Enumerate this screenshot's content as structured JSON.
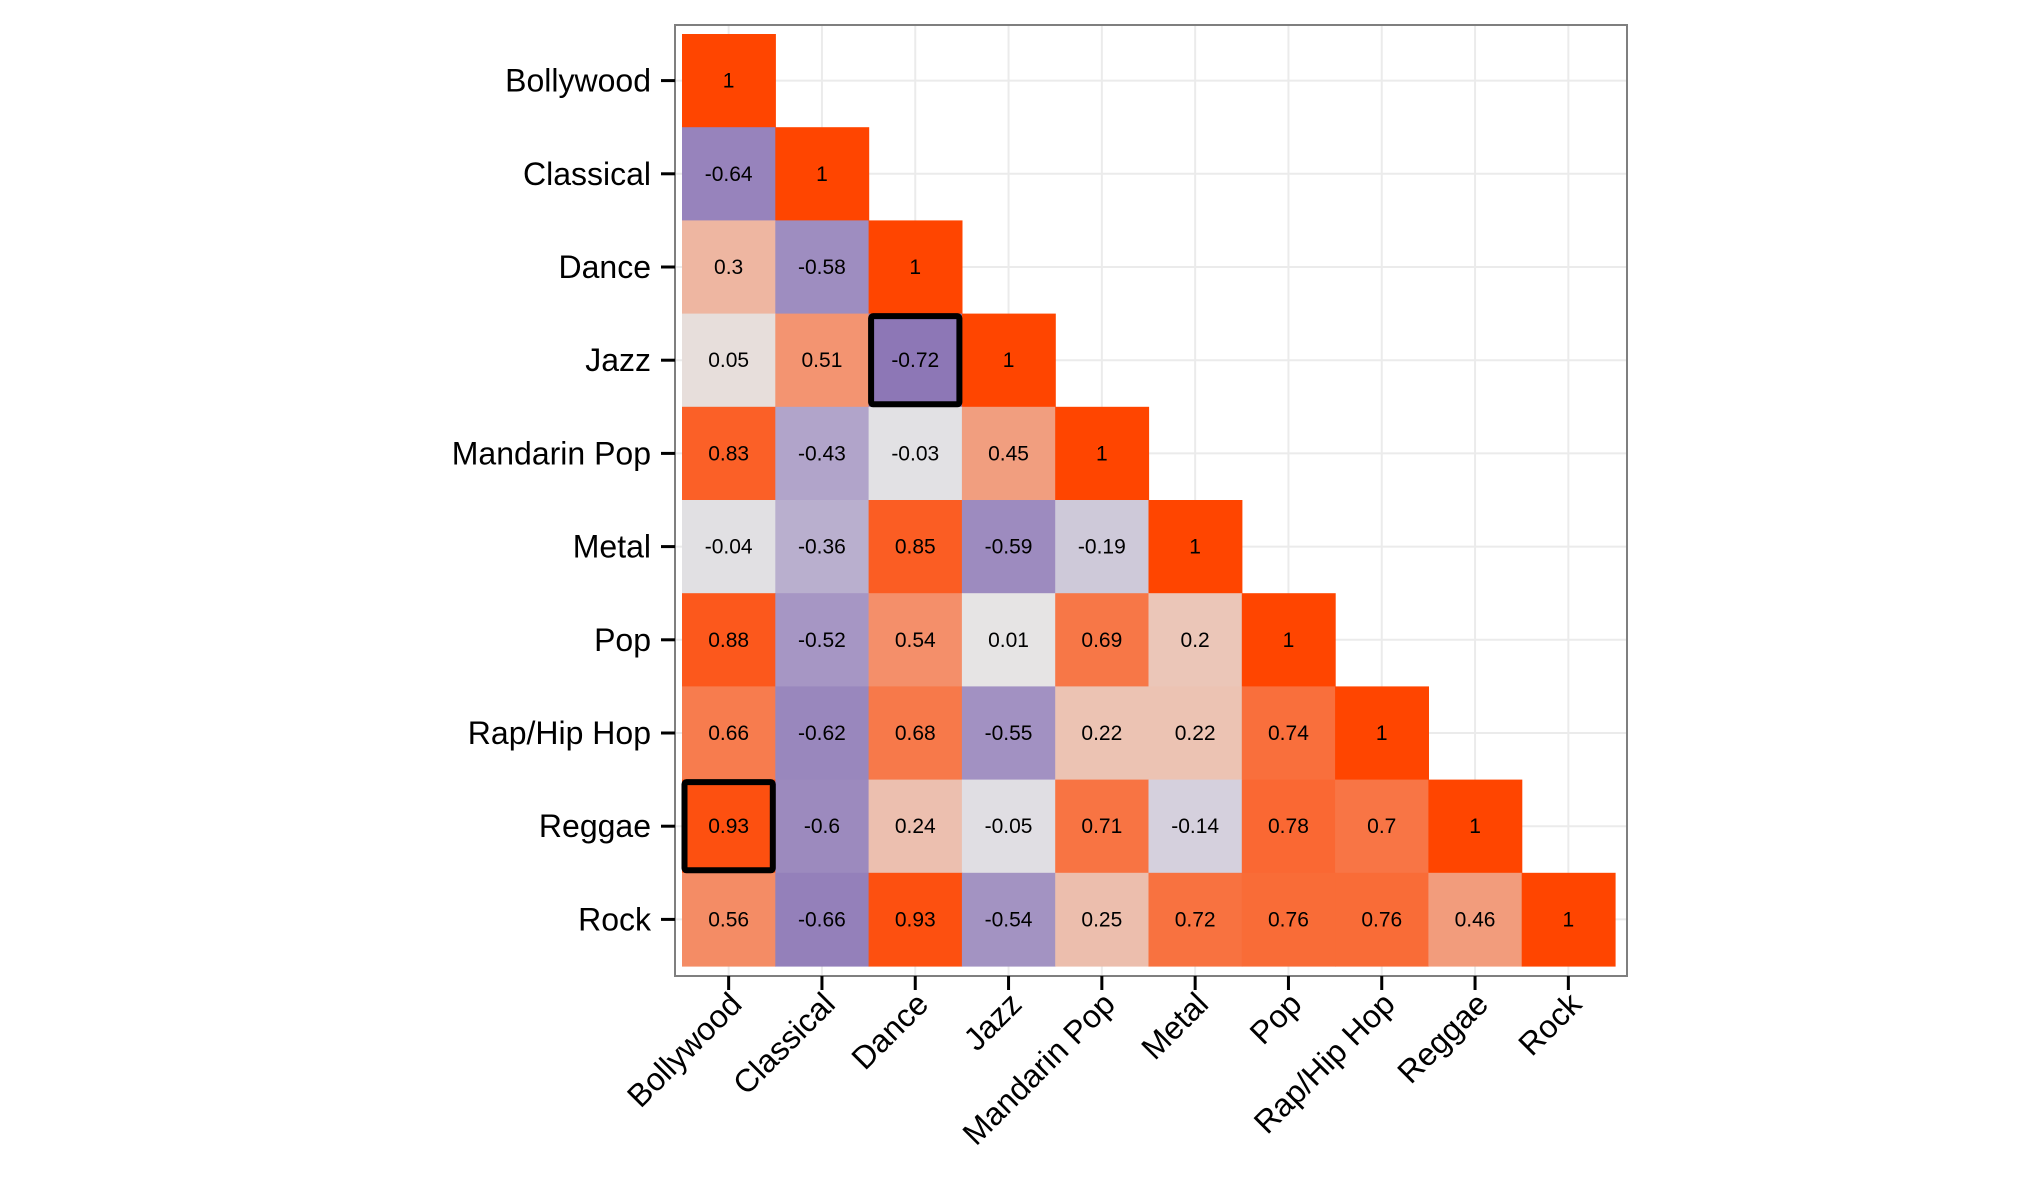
{
  "chart_data": {
    "type": "heatmap",
    "title": "",
    "xlabel": "",
    "ylabel": "",
    "categories": [
      "Bollywood",
      "Classical",
      "Dance",
      "Jazz",
      "Mandarin Pop",
      "Metal",
      "Pop",
      "Rap/Hip Hop",
      "Reggae",
      "Rock"
    ],
    "matrix": [
      [
        1,
        null,
        null,
        null,
        null,
        null,
        null,
        null,
        null,
        null
      ],
      [
        -0.64,
        1,
        null,
        null,
        null,
        null,
        null,
        null,
        null,
        null
      ],
      [
        0.3,
        -0.58,
        1,
        null,
        null,
        null,
        null,
        null,
        null,
        null
      ],
      [
        0.05,
        0.51,
        -0.72,
        1,
        null,
        null,
        null,
        null,
        null,
        null
      ],
      [
        0.83,
        -0.43,
        -0.03,
        0.45,
        1,
        null,
        null,
        null,
        null,
        null
      ],
      [
        -0.04,
        -0.36,
        0.85,
        -0.59,
        -0.19,
        1,
        null,
        null,
        null,
        null
      ],
      [
        0.88,
        -0.52,
        0.54,
        0.01,
        0.69,
        0.2,
        1,
        null,
        null,
        null
      ],
      [
        0.66,
        -0.62,
        0.68,
        -0.55,
        0.22,
        0.22,
        0.74,
        1,
        null,
        null
      ],
      [
        0.93,
        -0.6,
        0.24,
        -0.05,
        0.71,
        -0.14,
        0.78,
        0.7,
        1,
        null
      ],
      [
        0.56,
        -0.66,
        0.93,
        -0.54,
        0.25,
        0.72,
        0.76,
        0.76,
        0.46,
        1
      ]
    ],
    "highlighted_cells": [
      {
        "row": "Jazz",
        "col": "Dance"
      },
      {
        "row": "Reggae",
        "col": "Bollywood"
      }
    ],
    "color_scale": {
      "low": "#6a4ca4",
      "mid": "#e6e6e6",
      "high": "#ff4500",
      "domain": [
        -1,
        0,
        1
      ]
    },
    "grid": true,
    "legend": "none"
  }
}
